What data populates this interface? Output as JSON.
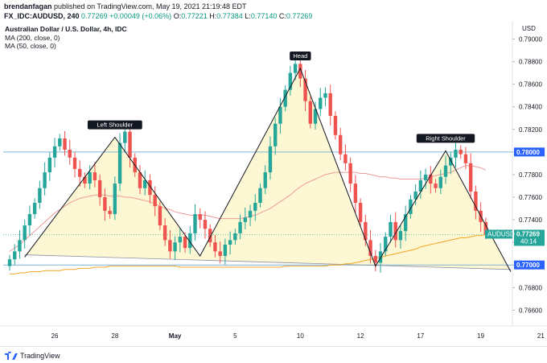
{
  "header": {
    "author": "brendanfagan",
    "published_text": "published on TradingView.com, May 19, 2021 21:19:48 EDT",
    "symbol": "FX_IDC:AUDUSD, 240",
    "price": "0.77269",
    "change": "+0.00049 (+0.06%)",
    "o_label": "O:",
    "o_value": "0.77221",
    "h_label": "H:",
    "h_value": "0.77384",
    "l_label": "L:",
    "l_value": "0.77140",
    "c_label": "C:",
    "c_value": "0.77269"
  },
  "legend": {
    "title": "Australian Dollar / U.S. Dollar, 4h, IDC",
    "ma200": "MA (200, close, 0)",
    "ma50": "MA (50, close, 0)"
  },
  "price_axis": {
    "currency": "USD",
    "ticks": [
      "0.79000",
      "0.78800",
      "0.78600",
      "0.78400",
      "0.78200",
      "0.78000",
      "0.77800",
      "0.77600",
      "0.77400",
      "0.77200",
      "0.77000",
      "0.76800",
      "0.76600"
    ],
    "level_upper": "0.78000",
    "level_lower": "0.77000",
    "symbol_tag": "AUDUSD",
    "last_price": "0.77269",
    "countdown": "40:14"
  },
  "time_axis": [
    "26",
    "28",
    "May",
    "5",
    "10",
    "12",
    "17",
    "19",
    "21"
  ],
  "annotations": [
    "Left Shoulder",
    "Head",
    "Right Shoulder"
  ],
  "footer": {
    "brand": "TradingView"
  },
  "colors": {
    "up": "#26a69a",
    "down": "#ef5350",
    "ma200": "#f5a623",
    "ma50": "#ef9a9a",
    "level": "#2962ff",
    "pattern_fill": "#fdf6c8"
  },
  "chart_data": {
    "type": "candlestick",
    "y_range": [
      0.7646,
      0.7916
    ],
    "x_ticks": [
      {
        "label": "26",
        "index": 9
      },
      {
        "label": "28",
        "index": 21
      },
      {
        "label": "May",
        "index": 33
      },
      {
        "label": "5",
        "index": 45
      },
      {
        "label": "10",
        "index": 58
      },
      {
        "label": "12",
        "index": 70
      },
      {
        "label": "17",
        "index": 82
      },
      {
        "label": "19",
        "index": 94
      },
      {
        "label": "21",
        "index": 106
      }
    ],
    "horizontal_levels": [
      0.78,
      0.77
    ],
    "close": [
      0.7705,
      0.7712,
      0.7722,
      0.7735,
      0.7745,
      0.7755,
      0.7768,
      0.7782,
      0.7795,
      0.7805,
      0.7812,
      0.7802,
      0.7795,
      0.7785,
      0.7778,
      0.7772,
      0.7782,
      0.7775,
      0.776,
      0.7748,
      0.7745,
      0.7772,
      0.7808,
      0.7818,
      0.7795,
      0.7782,
      0.7768,
      0.7775,
      0.7762,
      0.7752,
      0.7735,
      0.7722,
      0.7712,
      0.772,
      0.7725,
      0.7715,
      0.7728,
      0.7745,
      0.774,
      0.7732,
      0.772,
      0.7712,
      0.7708,
      0.7718,
      0.7722,
      0.7728,
      0.7738,
      0.7742,
      0.7748,
      0.7755,
      0.7768,
      0.7782,
      0.7805,
      0.7825,
      0.784,
      0.7855,
      0.787,
      0.7878,
      0.7865,
      0.7845,
      0.7825,
      0.7838,
      0.7848,
      0.7852,
      0.7832,
      0.7815,
      0.7798,
      0.779,
      0.7772,
      0.7755,
      0.7738,
      0.7722,
      0.7708,
      0.7702,
      0.7712,
      0.7725,
      0.7738,
      0.7722,
      0.773,
      0.7745,
      0.7758,
      0.7765,
      0.7775,
      0.778,
      0.7772,
      0.7768,
      0.7778,
      0.7788,
      0.7795,
      0.7802,
      0.7798,
      0.779,
      0.7765,
      0.7748,
      0.7738,
      0.7727
    ],
    "ma200": [
      0.7692,
      0.7692,
      0.7693,
      0.7693,
      0.7694,
      0.7694,
      0.7694,
      0.7695,
      0.7695,
      0.7695,
      0.7695,
      0.7696,
      0.7696,
      0.7696,
      0.7697,
      0.7697,
      0.7697,
      0.7698,
      0.7698,
      0.7698,
      0.7699,
      0.7699,
      0.7699,
      0.7699,
      0.7699,
      0.7699,
      0.7699,
      0.7699,
      0.7699,
      0.7699,
      0.7699,
      0.7699,
      0.7699,
      0.7699,
      0.7698,
      0.7698,
      0.7698,
      0.7698,
      0.7698,
      0.7698,
      0.7698,
      0.7698,
      0.7698,
      0.7698,
      0.7698,
      0.7698,
      0.7698,
      0.7698,
      0.7698,
      0.7698,
      0.7698,
      0.7698,
      0.7698,
      0.7698,
      0.7698,
      0.7699,
      0.7699,
      0.7699,
      0.7699,
      0.7699,
      0.7699,
      0.7699,
      0.7699,
      0.7699,
      0.77,
      0.77,
      0.77,
      0.7701,
      0.7701,
      0.7702,
      0.7703,
      0.7704,
      0.7705,
      0.7706,
      0.7707,
      0.7708,
      0.7709,
      0.771,
      0.7711,
      0.7712,
      0.7713,
      0.7714,
      0.7716,
      0.7717,
      0.7718,
      0.7719,
      0.772,
      0.7721,
      0.7722,
      0.7723,
      0.7724,
      0.7724,
      0.7725,
      0.7726,
      0.7726,
      0.7727
    ],
    "ma50": [
      0.7712,
      0.7715,
      0.7718,
      0.7722,
      0.7726,
      0.773,
      0.7734,
      0.7738,
      0.7742,
      0.7746,
      0.7749,
      0.7752,
      0.7755,
      0.7757,
      0.7759,
      0.776,
      0.7761,
      0.7762,
      0.7762,
      0.7762,
      0.7761,
      0.7761,
      0.7761,
      0.776,
      0.776,
      0.7759,
      0.7758,
      0.7757,
      0.7756,
      0.7754,
      0.7752,
      0.775,
      0.7749,
      0.7747,
      0.7746,
      0.7745,
      0.7744,
      0.7744,
      0.7744,
      0.7744,
      0.7743,
      0.7742,
      0.7741,
      0.7741,
      0.7741,
      0.7741,
      0.7741,
      0.7742,
      0.7743,
      0.7744,
      0.7746,
      0.7748,
      0.775,
      0.7753,
      0.7756,
      0.7759,
      0.7762,
      0.7766,
      0.7769,
      0.7772,
      0.7774,
      0.7776,
      0.7778,
      0.778,
      0.7781,
      0.7782,
      0.7782,
      0.7782,
      0.7782,
      0.7782,
      0.7781,
      0.7781,
      0.778,
      0.7779,
      0.7778,
      0.7778,
      0.7777,
      0.7777,
      0.7776,
      0.7776,
      0.7776,
      0.7776,
      0.7776,
      0.7777,
      0.7778,
      0.7779,
      0.778,
      0.7781,
      0.7782,
      0.7784,
      0.7786,
      0.7788,
      0.7788,
      0.7787,
      0.7786,
      0.7784
    ],
    "pattern_points": [
      [
        3,
        0.7707
      ],
      [
        21,
        0.7813
      ],
      [
        38,
        0.7708
      ],
      [
        58,
        0.7874
      ],
      [
        73,
        0.7699
      ],
      [
        87,
        0.7801
      ],
      [
        100,
        0.7694
      ]
    ],
    "neckline": [
      [
        3,
        0.7709
      ],
      [
        100,
        0.7696
      ]
    ]
  }
}
